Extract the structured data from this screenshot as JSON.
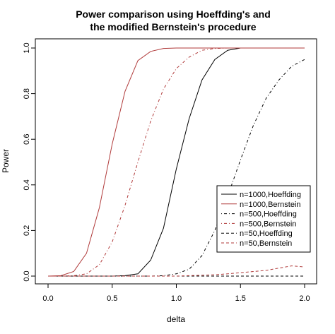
{
  "chart_data": {
    "type": "line",
    "title": [
      "Power comparison using Hoeffding's and",
      "the modified Bernstein's procedure"
    ],
    "xlabel": "delta",
    "ylabel": "Power",
    "xlim": [
      0.0,
      2.0
    ],
    "ylim": [
      0.0,
      1.0
    ],
    "xticks": [
      0.0,
      0.5,
      1.0,
      1.5,
      2.0
    ],
    "xtick_labels": [
      "0.0",
      "0.5",
      "1.0",
      "1.5",
      "2.0"
    ],
    "yticks": [
      0.0,
      0.2,
      0.4,
      0.6,
      0.8,
      1.0
    ],
    "ytick_labels": [
      "0.0",
      "0.2",
      "0.4",
      "0.6",
      "0.8",
      "1.0"
    ],
    "grid": false,
    "legend_position": "right",
    "x": [
      0.0,
      0.1,
      0.2,
      0.3,
      0.4,
      0.5,
      0.6,
      0.7,
      0.8,
      0.9,
      1.0,
      1.1,
      1.2,
      1.3,
      1.4,
      1.5,
      1.6,
      1.7,
      1.8,
      1.9,
      2.0
    ],
    "series": [
      {
        "name": "n=1000,Hoeffding",
        "color": "#000000",
        "dash": "solid",
        "values": [
          0.0,
          0.0,
          0.0,
          0.0,
          0.0,
          0.0,
          0.002,
          0.01,
          0.07,
          0.21,
          0.47,
          0.69,
          0.86,
          0.95,
          0.99,
          1.0,
          1.0,
          1.0,
          1.0,
          1.0,
          1.0
        ]
      },
      {
        "name": "n=1000,Bernstein",
        "color": "#b03a3a",
        "dash": "solid",
        "values": [
          0.0,
          0.002,
          0.02,
          0.1,
          0.3,
          0.58,
          0.81,
          0.945,
          0.985,
          0.998,
          1.0,
          1.0,
          1.0,
          1.0,
          1.0,
          1.0,
          1.0,
          1.0,
          1.0,
          1.0,
          1.0
        ]
      },
      {
        "name": "n=500,Hoeffding",
        "color": "#000000",
        "dash": "dotdash",
        "values": [
          0.0,
          0.0,
          0.0,
          0.0,
          0.0,
          0.0,
          0.0,
          0.0,
          0.0,
          0.002,
          0.01,
          0.03,
          0.09,
          0.2,
          0.35,
          0.51,
          0.66,
          0.78,
          0.86,
          0.92,
          0.95
        ]
      },
      {
        "name": "n=500,Bernstein",
        "color": "#b03a3a",
        "dash": "dotdash",
        "values": [
          0.0,
          0.0,
          0.002,
          0.01,
          0.05,
          0.15,
          0.31,
          0.5,
          0.68,
          0.82,
          0.91,
          0.96,
          0.99,
          0.998,
          1.0,
          1.0,
          1.0,
          1.0,
          1.0,
          1.0,
          1.0
        ]
      },
      {
        "name": "n=50,Hoeffding",
        "color": "#000000",
        "dash": "dashed",
        "values": [
          0.0,
          0.0,
          0.0,
          0.0,
          0.0,
          0.0,
          0.0,
          0.0,
          0.0,
          0.0,
          0.0,
          0.0,
          0.0,
          0.0,
          0.0,
          0.0,
          0.0,
          0.0,
          0.0,
          0.0,
          0.0
        ]
      },
      {
        "name": "n=50,Bernstein",
        "color": "#b03a3a",
        "dash": "dashed",
        "values": [
          0.0,
          0.0,
          0.0,
          0.0,
          0.0,
          0.0,
          0.0,
          0.0,
          0.0,
          0.0,
          0.0,
          0.002,
          0.004,
          0.006,
          0.01,
          0.015,
          0.02,
          0.025,
          0.035,
          0.045,
          0.04
        ]
      }
    ]
  }
}
